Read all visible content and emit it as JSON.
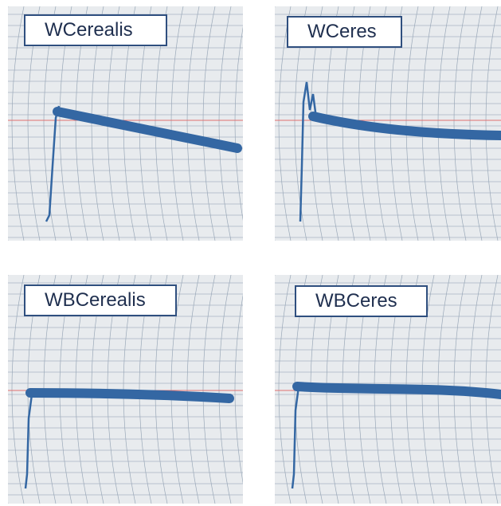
{
  "panels": [
    {
      "label": "WCerealis"
    },
    {
      "label": "WCeres"
    },
    {
      "label": "WBCerealis"
    },
    {
      "label": "WBCeres"
    }
  ]
}
